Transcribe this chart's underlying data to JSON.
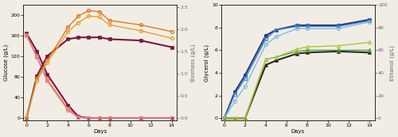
{
  "days_left": [
    0,
    1,
    2,
    4,
    5,
    6,
    7,
    8,
    11,
    14
  ],
  "days_right": [
    0,
    1,
    2,
    4,
    5,
    7,
    8,
    11,
    14
  ],
  "glucose_maroon": [
    165,
    130,
    85,
    25,
    3,
    0,
    0,
    0,
    0,
    0
  ],
  "glucose_orange": [
    162,
    120,
    75,
    18,
    2,
    0,
    0,
    0,
    0,
    0
  ],
  "glucose_pink": [
    160,
    118,
    72,
    15,
    1,
    0,
    0,
    0,
    0,
    0
  ],
  "biomass_maroon": [
    0,
    0.95,
    1.4,
    1.78,
    1.82,
    1.82,
    1.82,
    1.78,
    1.75,
    1.6
  ],
  "biomass_orange": [
    0,
    0.9,
    1.3,
    2.05,
    2.3,
    2.42,
    2.4,
    2.2,
    2.1,
    1.95
  ],
  "biomass_yellow": [
    0,
    0.85,
    1.25,
    1.95,
    2.15,
    2.3,
    2.28,
    2.1,
    1.97,
    1.8
  ],
  "glycerol_darkblue": [
    0,
    2.3,
    3.8,
    7.3,
    7.8,
    8.2,
    8.2,
    8.2,
    8.7
  ],
  "glycerol_blue": [
    0,
    2.1,
    3.5,
    7.0,
    7.8,
    8.1,
    8.1,
    8.1,
    8.6
  ],
  "glycerol_lightblue": [
    0,
    1.5,
    2.8,
    6.5,
    7.2,
    7.9,
    7.9,
    7.9,
    8.5
  ],
  "ethanol_black": [
    0,
    0,
    0,
    47,
    51,
    57,
    58,
    59,
    58
  ],
  "ethanol_green": [
    0,
    0,
    0,
    52,
    54,
    59,
    60,
    60,
    60
  ],
  "ethanol_ygreen": [
    0,
    0,
    0,
    52,
    54,
    61,
    63,
    64,
    67
  ],
  "col_maroon": "#7B1545",
  "col_orange": "#E07820",
  "col_pink": "#E080A0",
  "col_yellow": "#E8A030",
  "col_darkblue": "#1A3A8C",
  "col_blue": "#4A7FC0",
  "col_lightblue": "#80BDE0",
  "col_black": "#282828",
  "col_green": "#50A040",
  "col_ygreen": "#A8C838",
  "bg": "#F2EDE4"
}
